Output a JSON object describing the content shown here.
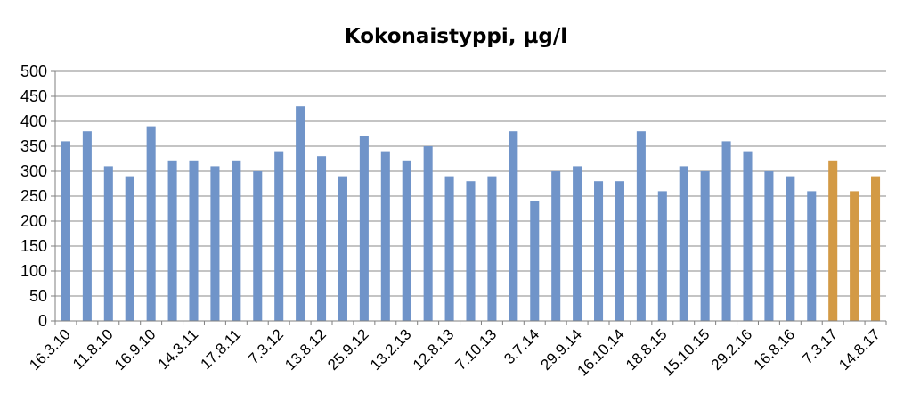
{
  "chart_data": {
    "type": "bar",
    "title": "Kokonaistyppi, µg/l",
    "xlabel": "",
    "ylabel": "",
    "ylim": [
      0,
      500
    ],
    "yticks": [
      "0",
      "50",
      "100",
      "150",
      "200",
      "250",
      "300",
      "350",
      "400",
      "450",
      "500"
    ],
    "grid": true,
    "legend": "none",
    "x_labels_visible": [
      "16.3.10",
      "11.8.10",
      "16.9.10",
      "14.3.11",
      "17.8.11",
      "7.3.12",
      "13.8.12",
      "25.9.12",
      "13.2.13",
      "12.8.13",
      "7.10.13",
      "3.7.14",
      "29.9.14",
      "16.10.14",
      "18.8.15",
      "15.10.15",
      "29.2.16",
      "16.8.16",
      "7.3.17",
      "14.8.17"
    ],
    "values": [
      360,
      380,
      310,
      290,
      390,
      320,
      320,
      310,
      320,
      300,
      340,
      430,
      330,
      290,
      370,
      340,
      320,
      350,
      290,
      280,
      290,
      380,
      240,
      300,
      310,
      280,
      280,
      380,
      260,
      310,
      300,
      360,
      340,
      300,
      290,
      260,
      320,
      260,
      290
    ],
    "colors": {
      "default": "#7094c9",
      "highlight": "#d39a45",
      "highlight_from_index": 36
    }
  }
}
